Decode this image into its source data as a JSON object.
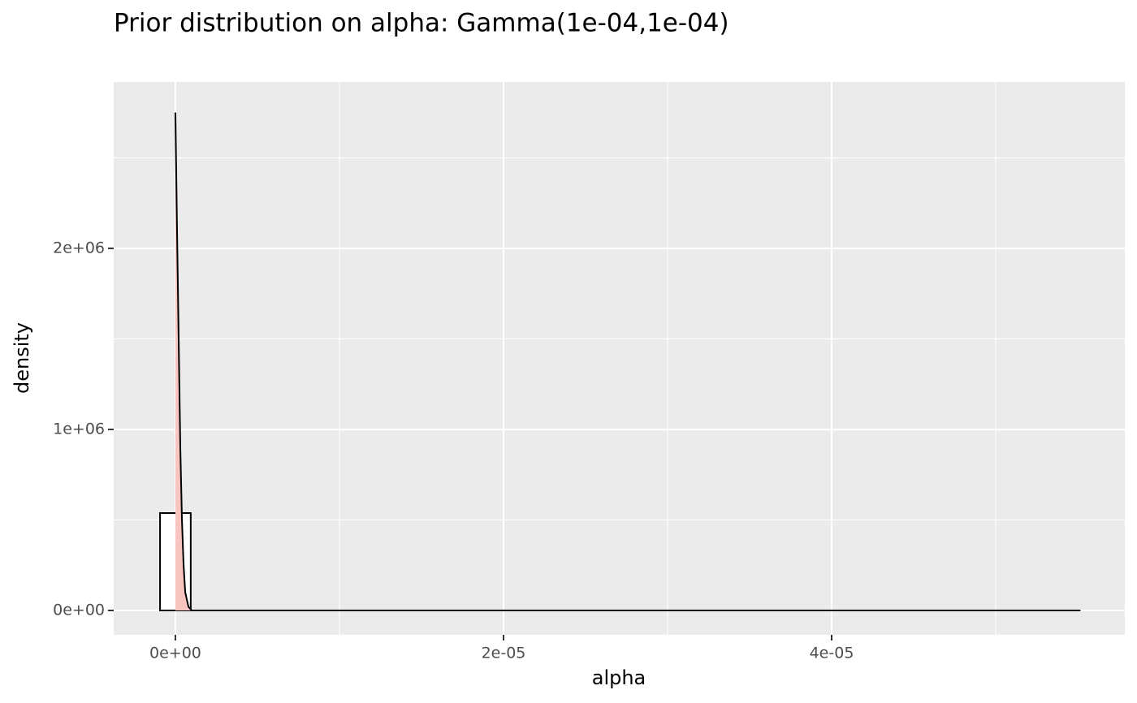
{
  "chart_data": {
    "type": "histogram",
    "title": "Prior distribution on alpha: Gamma(1e-04,1e-04)",
    "x_label": "alpha",
    "y_label": "density",
    "bins": [
      -9.35e-07,
      9.35e-07,
      2.805e-06,
      4.675e-06,
      6.545e-06,
      8.415e-06,
      1.0285e-05,
      1.2155e-05,
      1.4025e-05,
      1.5895e-05,
      1.7765e-05,
      1.9635e-05,
      2.1505e-05,
      2.3375e-05,
      2.5245e-05,
      2.7115e-05,
      2.8985e-05,
      3.0855e-05,
      3.2725e-05,
      3.4595e-05,
      3.6465e-05,
      3.8335e-05,
      4.0205e-05,
      4.2075e-05,
      4.3945e-05,
      4.5815e-05,
      4.7685e-05,
      4.9555e-05,
      5.1425e-05,
      5.3295e-05,
      5.5165e-05
    ],
    "values": [
      538000,
      0,
      0,
      0,
      0,
      0,
      0,
      0,
      0,
      0,
      0,
      0,
      0,
      0,
      0,
      0,
      0,
      0,
      0,
      0,
      0,
      0,
      0,
      0,
      0,
      0,
      0,
      0,
      0,
      0
    ],
    "bar_fill": "#ffffff",
    "bar_edge": "#000000",
    "density": {
      "x": [
        0,
        1e-07,
        2e-07,
        3e-07,
        4e-07,
        5e-07,
        6e-07,
        8e-07,
        1e-06,
        5.5165e-05
      ],
      "values": [
        2750000,
        2100000,
        1500000,
        900000,
        500000,
        250000,
        100000,
        20000,
        0,
        0
      ],
      "color": "#000000",
      "fill": "#f8c4bf"
    },
    "xlim": [
      -3.76e-06,
      5.787e-05
    ],
    "xticks": [
      {
        "value": 0,
        "label": "0e+00"
      },
      {
        "value": 2e-05,
        "label": "2e-05"
      },
      {
        "value": 4e-05,
        "label": "4e-05"
      }
    ],
    "x_minor_ticks": [
      1e-05,
      3e-05,
      5e-05
    ],
    "ylim": [
      -134530,
      2919000
    ],
    "yticks": [
      {
        "value": 0,
        "label": "0e+00"
      },
      {
        "value": 1000000,
        "label": "1e+06"
      },
      {
        "value": 2000000,
        "label": "2e+06"
      }
    ],
    "y_minor_ticks": [
      500000,
      1500000,
      2500000
    ],
    "grid": true,
    "panel_color": "#ebebeb"
  }
}
